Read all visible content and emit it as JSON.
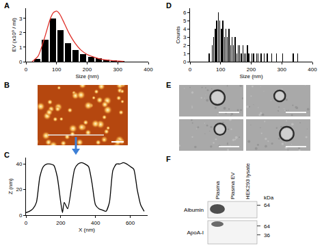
{
  "chart_data": [
    {
      "type": "bar",
      "x_label": "Size (nm)",
      "y_label": "EV (x10⁹ / ml)",
      "bins": [
        25,
        50,
        75,
        100,
        125,
        150,
        175,
        200,
        225,
        250,
        275,
        300,
        325
      ],
      "values": [
        0.2,
        1.5,
        3.0,
        2.2,
        1.3,
        0.8,
        0.5,
        0.35,
        0.25,
        0.15,
        0.1,
        0.05
      ],
      "color": "#000000",
      "fit": {
        "type": "line",
        "color": "#e0302a",
        "x": [
          20,
          40,
          60,
          80,
          90,
          100,
          110,
          120,
          140,
          160,
          180,
          200,
          240,
          280,
          320
        ],
        "values": [
          0,
          0.4,
          1.6,
          3.0,
          3.4,
          3.5,
          3.3,
          2.9,
          2.0,
          1.3,
          0.8,
          0.5,
          0.2,
          0.08,
          0.02
        ]
      },
      "xlim": [
        0,
        400
      ],
      "xticks": [
        0,
        100,
        200,
        300,
        400
      ],
      "ylim": [
        0,
        3.7
      ],
      "yticks": [
        0,
        1,
        2,
        3
      ],
      "grid": false
    },
    {
      "type": "line",
      "x_label": "X (nm)",
      "y_label": "Z (nm)",
      "x": [
        0,
        20,
        40,
        60,
        80,
        100,
        120,
        140,
        160,
        180,
        200,
        210,
        220,
        240,
        260,
        280,
        300,
        320,
        340,
        360,
        380,
        400,
        420,
        440,
        460,
        480,
        500,
        520,
        540,
        560,
        580,
        600,
        620,
        640,
        660,
        680
      ],
      "values": [
        2,
        3,
        5,
        10,
        30,
        38,
        40,
        40,
        39,
        30,
        10,
        2,
        10,
        5,
        20,
        36,
        40,
        41,
        40,
        38,
        25,
        8,
        5,
        4,
        3,
        10,
        35,
        40,
        40,
        41,
        40,
        38,
        36,
        20,
        8,
        3
      ],
      "color": "#000000",
      "xlim": [
        0,
        700
      ],
      "xticks": [
        0,
        200,
        400,
        600
      ],
      "ylim": [
        0,
        45
      ],
      "yticks": [
        0,
        20,
        40
      ],
      "grid": false
    },
    {
      "type": "bar",
      "x_label": "Size (nm)",
      "y_label": "Counts",
      "bins": [
        60,
        65,
        70,
        75,
        80,
        85,
        90,
        95,
        100,
        105,
        110,
        115,
        120,
        125,
        130,
        135,
        140,
        145,
        150,
        155,
        160,
        165,
        170,
        175,
        180,
        185,
        190,
        195,
        200,
        205,
        210,
        215,
        220,
        225,
        230,
        235,
        240,
        245,
        250,
        255,
        260,
        265,
        270,
        275,
        280,
        285,
        290,
        295,
        300,
        305,
        310,
        315,
        320,
        325,
        330,
        335,
        340,
        345,
        350,
        355,
        360
      ],
      "values": [
        1,
        0,
        2,
        3,
        4,
        5,
        6,
        5,
        4,
        5,
        3,
        4,
        3,
        4,
        2,
        3,
        2,
        3,
        1,
        2,
        2,
        1,
        2,
        1,
        1,
        2,
        1,
        0,
        1,
        1,
        0,
        1,
        1,
        0,
        1,
        0,
        1,
        0,
        1,
        0,
        0,
        1,
        0,
        0,
        1,
        0,
        0,
        0,
        1,
        0,
        0,
        0,
        0,
        0,
        0,
        1,
        0,
        0,
        1,
        0
      ],
      "color": "#000000",
      "xlim": [
        0,
        400
      ],
      "xticks": [
        0,
        100,
        200,
        300,
        400
      ],
      "ylim": [
        0,
        6.5
      ],
      "yticks": [
        0,
        1,
        2,
        3,
        4,
        5,
        6
      ],
      "grid": false
    }
  ],
  "panel_labels": [
    "A",
    "B",
    "C",
    "D",
    "E",
    "F"
  ],
  "blot": {
    "lanes": [
      "Plasma",
      "Plasma EV",
      "HEK293 lysate"
    ],
    "unit": "kDa",
    "panels": [
      {
        "label": "Albumin",
        "markers": [
          64
        ]
      },
      {
        "label": "ApoA-I",
        "markers": [
          64,
          36
        ]
      }
    ]
  }
}
